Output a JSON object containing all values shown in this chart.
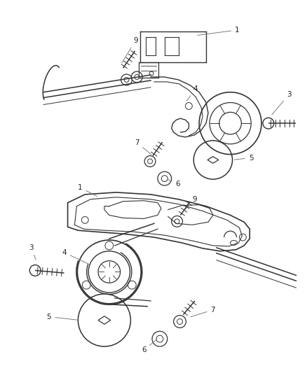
{
  "background_color": "#ffffff",
  "line_color": "#333333",
  "text_color": "#222222",
  "fig_width": 4.39,
  "fig_height": 5.33,
  "dpi": 100,
  "label_fs": 7.5
}
